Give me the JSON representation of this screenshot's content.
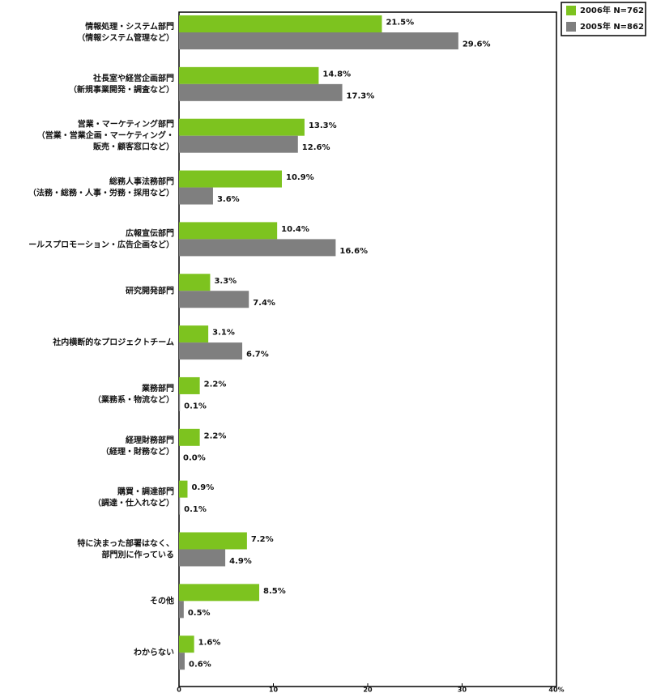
{
  "chart_data": {
    "type": "hbar",
    "categories": [
      [
        "情報処理・システム部門",
        "（情報システム管理など）"
      ],
      [
        "社長室や経営企画部門",
        "（新規事業開発・調査など）"
      ],
      [
        "営業・マーケティング部門",
        "（営業・営業企画・マーケティング・",
        "販売・顧客窓口など）"
      ],
      [
        "総務人事法務部門",
        "（法務・総務・人事・労務・採用など）"
      ],
      [
        "広報宣伝部門",
        "ールスプロモーション・広告企画など）"
      ],
      [
        "研究開発部門"
      ],
      [
        "社内横断的なプロジェクトチーム"
      ],
      [
        "業務部門",
        "（業務系・物流など）"
      ],
      [
        "経理財務部門",
        "（経理・財務など）"
      ],
      [
        "購買・調達部門",
        "（調達・仕入れなど）"
      ],
      [
        "特に決まった部署はなく、",
        "部門別に作っている"
      ],
      [
        "その他"
      ],
      [
        "わからない"
      ]
    ],
    "series": [
      {
        "name": "2006年 N=762",
        "color": "#7dc31f",
        "values": [
          21.5,
          14.8,
          13.3,
          10.9,
          10.4,
          3.3,
          3.1,
          2.2,
          2.2,
          0.9,
          7.2,
          8.5,
          1.6
        ],
        "value_labels": [
          "21.5%",
          "14.8%",
          "13.3%",
          "10.9%",
          "10.4%",
          "3.3%",
          "3.1%",
          "2.2%",
          "2.2%",
          "0.9%",
          "7.2%",
          "8.5%",
          "1.6%"
        ]
      },
      {
        "name": "2005年 N=862",
        "color": "#7f7f7f",
        "values": [
          29.6,
          17.3,
          12.6,
          3.6,
          16.6,
          7.4,
          6.7,
          0.1,
          0.0,
          0.1,
          4.9,
          0.5,
          0.6
        ],
        "value_labels": [
          "29.6%",
          "17.3%",
          "12.6%",
          "3.6%",
          "16.6%",
          "7.4%",
          "6.7%",
          "0.1%",
          "0.0%",
          "0.1%",
          "4.9%",
          "0.5%",
          "0.6%"
        ]
      }
    ],
    "xlim": [
      0,
      40
    ],
    "xticks": [
      0,
      10,
      20,
      30,
      {
        "value": 40,
        "label": "40%"
      }
    ],
    "legend": "top-right"
  }
}
